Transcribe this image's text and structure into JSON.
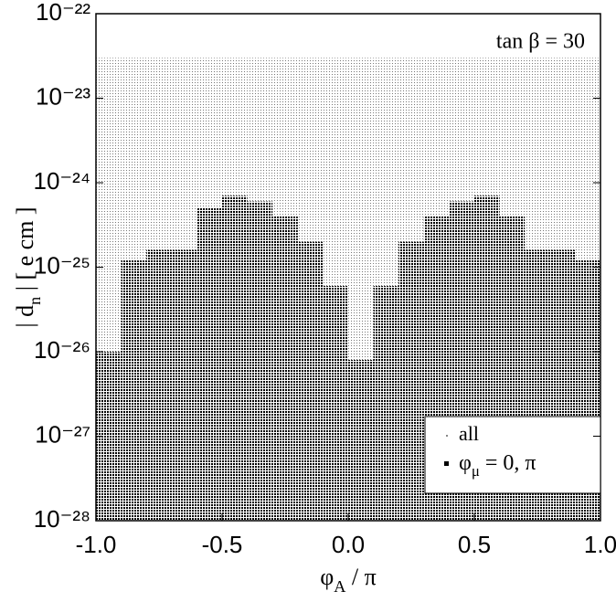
{
  "chart_data": {
    "type": "range",
    "annotation": "tan β = 30",
    "x_label": {
      "symbol": "φ",
      "subscript": "A",
      "rest": " / π"
    },
    "y_label": {
      "left": "| d",
      "subscript": "n",
      "rest": " |  [ e cm ]"
    },
    "xlim": [
      -1,
      1
    ],
    "xticks": [
      {
        "value": -1,
        "label": "-1.0"
      },
      {
        "value": -0.5,
        "label": "-0.5"
      },
      {
        "value": 0,
        "label": "0.0"
      },
      0.5,
      {
        "value": 1,
        "label": "1.0"
      }
    ],
    "ylim": [
      1e-28,
      1e-22
    ],
    "yticks": [
      {
        "value": 1e-28,
        "label": "10⁻²⁸"
      },
      {
        "value": 1e-27,
        "label": "10⁻²⁷"
      },
      {
        "value": 1e-26,
        "label": "10⁻²⁶"
      },
      {
        "value": 1e-25,
        "label": "10⁻²⁵"
      },
      {
        "value": 1e-24,
        "label": "10⁻²⁴"
      },
      {
        "value": 1e-23,
        "label": "10⁻²³"
      },
      {
        "value": 1e-22,
        "label": "10⁻²²"
      }
    ],
    "log_y": true,
    "legend": "lower right",
    "series": [
      {
        "name": "all",
        "color": "#888888",
        "x": [
          -1,
          -0.9,
          -0.8,
          -0.7,
          -0.6,
          -0.5,
          -0.4,
          -0.3,
          -0.2,
          -0.1,
          0,
          0.1,
          0.2,
          0.3,
          0.4,
          0.5,
          0.6,
          0.7,
          0.8,
          0.9
        ],
        "low": [
          1e-28,
          1e-28,
          1e-28,
          1e-28,
          1e-28,
          1e-28,
          1e-28,
          1e-28,
          1e-28,
          1e-28,
          1e-28,
          1e-28,
          1e-28,
          1e-28,
          1e-28,
          1e-28,
          1e-28,
          1e-28,
          1e-28,
          1e-28
        ],
        "high": [
          3e-23,
          3e-23,
          3e-23,
          3e-23,
          3e-23,
          3e-23,
          3e-23,
          3e-23,
          3e-23,
          3e-23,
          3e-23,
          3e-23,
          3e-23,
          3e-23,
          3e-23,
          3e-23,
          3e-23,
          3e-23,
          3e-23,
          3e-23
        ]
      },
      {
        "name": {
          "symbol": "φ",
          "subscript": "μ",
          "rest": " = 0, π"
        },
        "color": "#000000",
        "x": [
          -1,
          -0.9,
          -0.8,
          -0.7,
          -0.6,
          -0.5,
          -0.4,
          -0.3,
          -0.2,
          -0.1,
          0,
          0.1,
          0.2,
          0.3,
          0.4,
          0.5,
          0.6,
          0.7,
          0.8,
          0.9
        ],
        "low": [
          1e-28,
          1e-28,
          1e-28,
          1e-28,
          1e-28,
          1e-28,
          1e-28,
          1e-28,
          1e-28,
          1e-28,
          1e-28,
          1e-28,
          1e-28,
          1e-28,
          1e-28,
          1e-28,
          1e-28,
          1e-28,
          1e-28,
          1e-28
        ],
        "high": [
          1e-26,
          1.2e-25,
          1.6e-25,
          1.6e-25,
          5e-25,
          7e-25,
          6e-25,
          4e-25,
          2e-25,
          6e-26,
          8e-27,
          6e-26,
          2e-25,
          4e-25,
          6e-25,
          7e-25,
          4e-25,
          1.6e-25,
          1.6e-25,
          1.2e-25
        ]
      }
    ]
  }
}
